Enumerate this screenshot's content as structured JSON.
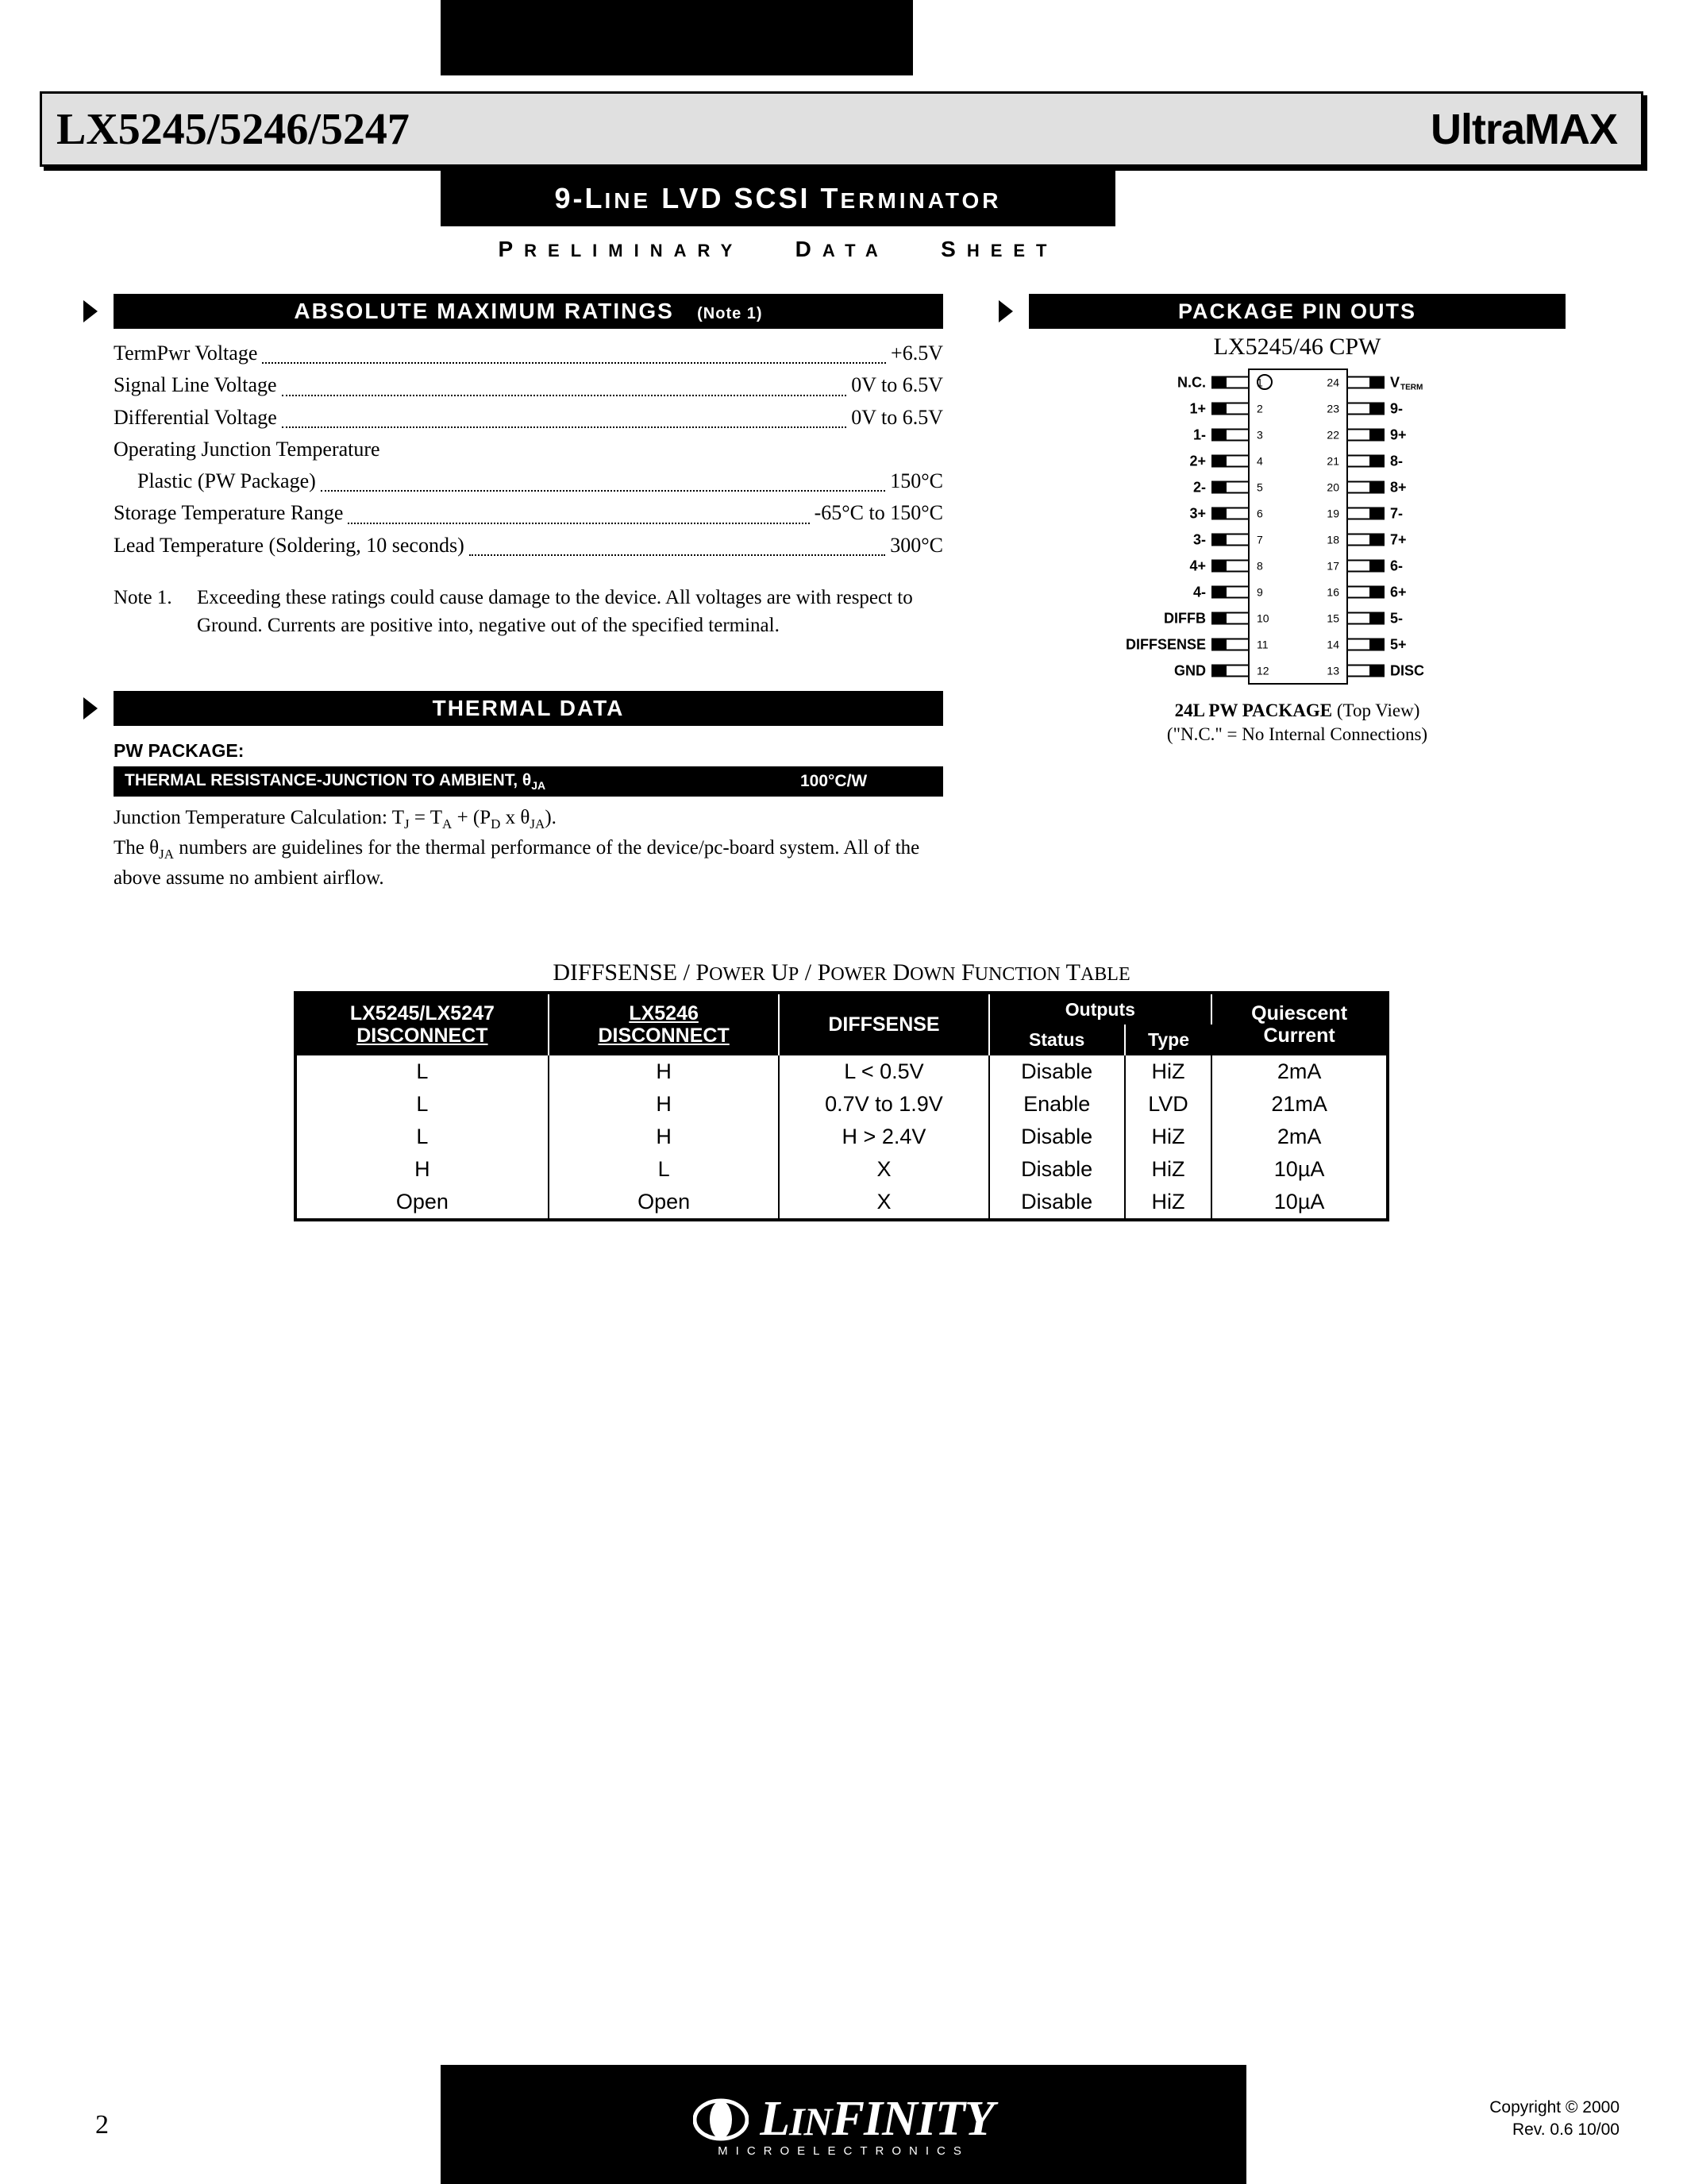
{
  "header": {
    "part_number": "LX5245/5246/5247",
    "brand": "UltraMAX",
    "subtitle_main": "LVD SCSI T",
    "subtitle_prefix": "9-L",
    "subtitle_prefix_sm": "INE",
    "subtitle_suffix_sm": "ERMINATOR",
    "prelim_p": "P",
    "prelim_reliminary": "RELIMINARY",
    "prelim_d": "D",
    "prelim_ata": "ATA",
    "prelim_s": "S",
    "prelim_heet": "HEET"
  },
  "abs_max": {
    "title": "ABSOLUTE MAXIMUM RATINGS",
    "note_label": "(Note 1)",
    "rows": [
      {
        "label": "TermPwr Voltage",
        "value": "+6.5V",
        "indent": false
      },
      {
        "label": "Signal Line Voltage",
        "value": "0V to 6.5V",
        "indent": false
      },
      {
        "label": "Differential Voltage",
        "value": "0V to 6.5V",
        "indent": false
      },
      {
        "label": "Operating Junction Temperature",
        "value": "",
        "indent": false,
        "no_dots": true
      },
      {
        "label": "Plastic (PW Package)",
        "value": "150°C",
        "indent": true
      },
      {
        "label": "Storage Temperature Range",
        "value": "-65°C to 150°C",
        "indent": false
      },
      {
        "label": "Lead Temperature (Soldering, 10 seconds)",
        "value": "300°C",
        "indent": false
      }
    ],
    "note1_label": "Note 1.",
    "note1_text": "Exceeding these ratings could cause damage to the device. All voltages are with respect to Ground.  Currents are positive into, negative out of the specified terminal."
  },
  "thermal": {
    "title": "THERMAL DATA",
    "pw_label": "PW PACKAGE:",
    "row_label": "THERMAL RESISTANCE-JUNCTION TO AMBIENT, θ",
    "row_sub": "JA",
    "row_value": "100°C/W",
    "note_line1": "Junction Temperature Calculation:  T",
    "note_j": "J",
    "note_eq": " = T",
    "note_a": "A",
    "note_plus": " + (P",
    "note_d": "D",
    "note_x": " x θ",
    "note_ja": "JA",
    "note_close": ").",
    "note_line2a": "The θ",
    "note_line2b": " numbers are guidelines for the thermal performance of the device/pc-board system.  All of the above assume no ambient airflow."
  },
  "pinout": {
    "title": "PACKAGE PIN OUTS",
    "part": "LX5245/46 CPW",
    "left_pins": [
      "N.C.",
      "1+",
      "1-",
      "2+",
      "2-",
      "3+",
      "3-",
      "4+",
      "4-",
      "DIFFB",
      "DIFFSENSE",
      "GND"
    ],
    "right_pins": [
      "V",
      "9-",
      "9+",
      "8-",
      "8+",
      "7-",
      "7+",
      "6-",
      "6+",
      "5-",
      "5+",
      "DISC"
    ],
    "right_pin1_sub": "TERM",
    "caption_line1": "24L PW PACKAGE",
    "caption_line1b": " (Top View)",
    "caption_line2": "(\"N.C.\" = No Internal Connections)"
  },
  "func": {
    "title_pre": "DIFFSENSE / P",
    "title_sc1": "OWER",
    "title_mid1": " U",
    "title_sc2": "P",
    "title_mid2": " / P",
    "title_sc3": "OWER",
    "title_mid3": " D",
    "title_sc4": "OWN",
    "title_mid4": " F",
    "title_sc5": "UNCTION",
    "title_mid5": " T",
    "title_sc6": "ABLE",
    "headers": {
      "c1a": "LX5245/LX5247",
      "c1b": "DISCONNECT",
      "c2a": "LX5246",
      "c2b": "DISCONNECT",
      "c3": "DIFFSENSE",
      "c4": "Outputs",
      "c4a": "Status",
      "c4b": "Type",
      "c5a": "Quiescent",
      "c5b": "Current"
    },
    "rows": [
      [
        "L",
        "H",
        "L < 0.5V",
        "Disable",
        "HiZ",
        "2mA"
      ],
      [
        "L",
        "H",
        "0.7V to 1.9V",
        "Enable",
        "LVD",
        "21mA"
      ],
      [
        "L",
        "H",
        "H > 2.4V",
        "Disable",
        "HiZ",
        "2mA"
      ],
      [
        "H",
        "L",
        "X",
        "Disable",
        "HiZ",
        "10µA"
      ],
      [
        "Open",
        "Open",
        "X",
        "Disable",
        "HiZ",
        "10µA"
      ]
    ]
  },
  "footer": {
    "page": "2",
    "brand_l": "L",
    "brand_in": "IN",
    "brand_finity": "FINITY",
    "sub": "MICROELECTRONICS",
    "copyright1": "Copyright © 2000",
    "copyright2": "Rev. 0.6 10/00"
  },
  "colors": {
    "black": "#000000",
    "titlebar_bg": "#e0e0e0"
  }
}
